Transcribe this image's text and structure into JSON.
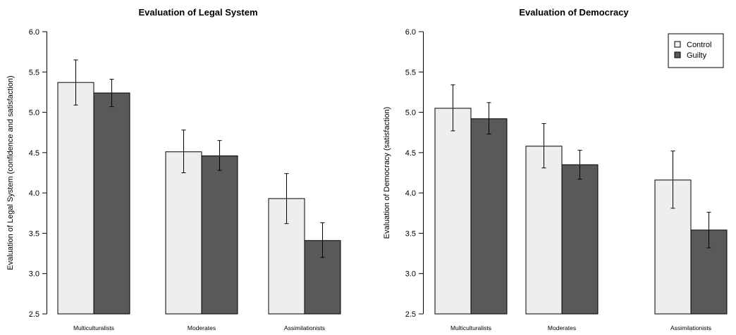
{
  "chart_data": [
    {
      "type": "bar",
      "title": "Evaluation of Legal System",
      "xlabel": "",
      "ylabel": "Evaluation of Legal System (confidence and satisfaction)",
      "ylim": [
        2.5,
        6.0
      ],
      "yticks": [
        "2.5",
        "3.0",
        "3.5",
        "4.0",
        "4.5",
        "5.0",
        "5.5",
        "6.0"
      ],
      "categories": [
        "Multiculturalists",
        "Moderates",
        "Assimilationists"
      ],
      "legend": null,
      "series": [
        {
          "name": "Control",
          "color": "#eeeeee",
          "values": [
            5.37,
            4.51,
            3.93
          ],
          "err_low": [
            5.09,
            4.25,
            3.62
          ],
          "err_high": [
            5.65,
            4.78,
            4.24
          ]
        },
        {
          "name": "Guilty",
          "color": "#595959",
          "values": [
            5.24,
            4.46,
            3.41
          ],
          "err_low": [
            5.07,
            4.28,
            3.2
          ],
          "err_high": [
            5.41,
            4.65,
            3.63
          ]
        }
      ]
    },
    {
      "type": "bar",
      "title": "Evaluation of Democracy",
      "xlabel": "",
      "ylabel": "Evaluation of Democracy (satisfaction)",
      "ylim": [
        2.5,
        6.0
      ],
      "yticks": [
        "2.5",
        "3.0",
        "3.5",
        "4.0",
        "4.5",
        "5.0",
        "5.5",
        "6.0"
      ],
      "categories": [
        "Multiculturalists",
        "Moderates",
        "Assimilationists"
      ],
      "legend": "top-right",
      "series": [
        {
          "name": "Control",
          "color": "#eeeeee",
          "values": [
            5.05,
            4.58,
            4.16
          ],
          "err_low": [
            4.77,
            4.31,
            3.81
          ],
          "err_high": [
            5.34,
            4.86,
            4.52
          ]
        },
        {
          "name": "Guilty",
          "color": "#595959",
          "values": [
            4.92,
            4.35,
            3.54
          ],
          "err_low": [
            4.73,
            4.17,
            3.32
          ],
          "err_high": [
            5.12,
            4.53,
            3.76
          ]
        }
      ]
    }
  ]
}
